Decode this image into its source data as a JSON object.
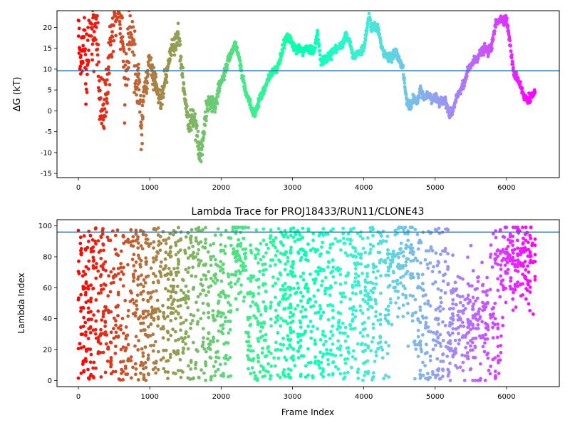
{
  "chart_data": [
    {
      "type": "scatter",
      "title": "",
      "ylabel": "ΔG (kT)",
      "xlabel": "",
      "xlim": [
        -300,
        6740
      ],
      "ylim": [
        -16,
        24
      ],
      "xticks": [
        0,
        1000,
        2000,
        3000,
        4000,
        5000,
        6000
      ],
      "yticks": [
        -15,
        -10,
        -5,
        0,
        5,
        10,
        15,
        20
      ],
      "hline": 9.6,
      "hline_color": "#1f77b4",
      "colormap": "rainbow (reversed: early frames red, late frames violet)",
      "frame_range": [
        0,
        6400
      ],
      "trace": [
        [
          0,
          20
        ],
        [
          40,
          10
        ],
        [
          80,
          18
        ],
        [
          120,
          8
        ],
        [
          160,
          24
        ],
        [
          200,
          17
        ],
        [
          250,
          22
        ],
        [
          300,
          3
        ],
        [
          350,
          0
        ],
        [
          400,
          4
        ],
        [
          450,
          18
        ],
        [
          500,
          22
        ],
        [
          550,
          24
        ],
        [
          600,
          20
        ],
        [
          650,
          7
        ],
        [
          700,
          13
        ],
        [
          750,
          20
        ],
        [
          800,
          8
        ],
        [
          850,
          5
        ],
        [
          880,
          -5
        ],
        [
          920,
          5
        ],
        [
          960,
          7
        ],
        [
          1000,
          13
        ],
        [
          1050,
          8
        ],
        [
          1100,
          5
        ],
        [
          1150,
          2
        ],
        [
          1200,
          7
        ],
        [
          1250,
          10
        ],
        [
          1300,
          15
        ],
        [
          1350,
          15
        ],
        [
          1400,
          19
        ],
        [
          1450,
          10
        ],
        [
          1500,
          2
        ],
        [
          1550,
          -3
        ],
        [
          1600,
          -2
        ],
        [
          1650,
          -3
        ],
        [
          1700,
          -11
        ],
        [
          1750,
          -6
        ],
        [
          1800,
          1
        ],
        [
          1850,
          2
        ],
        [
          1900,
          1
        ],
        [
          1950,
          4
        ],
        [
          2000,
          7
        ],
        [
          2050,
          9
        ],
        [
          2100,
          12
        ],
        [
          2150,
          14
        ],
        [
          2200,
          16
        ],
        [
          2250,
          13
        ],
        [
          2300,
          8
        ],
        [
          2350,
          4
        ],
        [
          2400,
          2
        ],
        [
          2450,
          -1
        ],
        [
          2500,
          1
        ],
        [
          2550,
          3
        ],
        [
          2600,
          5
        ],
        [
          2650,
          7
        ],
        [
          2700,
          9
        ],
        [
          2750,
          9.5
        ],
        [
          2800,
          11
        ],
        [
          2850,
          14
        ],
        [
          2900,
          17
        ],
        [
          2950,
          18
        ],
        [
          3000,
          16
        ],
        [
          3050,
          15
        ],
        [
          3100,
          15
        ],
        [
          3150,
          14
        ],
        [
          3200,
          15
        ],
        [
          3250,
          15
        ],
        [
          3300,
          14
        ],
        [
          3350,
          19
        ],
        [
          3400,
          12
        ],
        [
          3450,
          12
        ],
        [
          3500,
          13
        ],
        [
          3550,
          14
        ],
        [
          3600,
          15
        ],
        [
          3650,
          15
        ],
        [
          3700,
          16
        ],
        [
          3750,
          18
        ],
        [
          3800,
          17
        ],
        [
          3850,
          13
        ],
        [
          3900,
          14
        ],
        [
          3950,
          14
        ],
        [
          4000,
          15
        ],
        [
          4050,
          20
        ],
        [
          4080,
          23
        ],
        [
          4100,
          20
        ],
        [
          4200,
          20
        ],
        [
          4250,
          15
        ],
        [
          4300,
          13
        ],
        [
          4350,
          13
        ],
        [
          4400,
          13
        ],
        [
          4450,
          14
        ],
        [
          4500,
          12
        ],
        [
          4550,
          10
        ],
        [
          4600,
          2
        ],
        [
          4650,
          1
        ],
        [
          4700,
          3
        ],
        [
          4750,
          2
        ],
        [
          4800,
          5
        ],
        [
          4850,
          3
        ],
        [
          4900,
          4
        ],
        [
          4950,
          3
        ],
        [
          5000,
          3
        ],
        [
          5050,
          2
        ],
        [
          5100,
          3
        ],
        [
          5150,
          2
        ],
        [
          5200,
          -1
        ],
        [
          5250,
          0
        ],
        [
          5300,
          3
        ],
        [
          5350,
          5
        ],
        [
          5400,
          6
        ],
        [
          5450,
          9
        ],
        [
          5500,
          11
        ],
        [
          5550,
          12
        ],
        [
          5600,
          13
        ],
        [
          5650,
          14
        ],
        [
          5700,
          15
        ],
        [
          5750,
          14
        ],
        [
          5800,
          16
        ],
        [
          5850,
          21
        ],
        [
          5900,
          22
        ],
        [
          5950,
          22
        ],
        [
          6000,
          22
        ],
        [
          6050,
          16
        ],
        [
          6100,
          9
        ],
        [
          6150,
          8
        ],
        [
          6200,
          6
        ],
        [
          6250,
          3
        ],
        [
          6300,
          3
        ],
        [
          6400,
          4
        ]
      ]
    },
    {
      "type": "scatter",
      "title": "Lambda Trace for PROJ18433/RUN11/CLONE43",
      "xlabel": "Frame Index",
      "ylabel": "Lambda Index",
      "xlim": [
        -300,
        6740
      ],
      "ylim": [
        -4,
        104
      ],
      "xticks": [
        0,
        1000,
        2000,
        3000,
        4000,
        5000,
        6000
      ],
      "yticks": [
        0,
        20,
        40,
        60,
        80,
        100
      ],
      "hline": 96,
      "hline_color": "#1f77b4",
      "colormap": "rainbow (reversed: early frames red, late frames violet)",
      "frame_range": [
        0,
        6400
      ],
      "lambda_range": [
        0,
        99
      ],
      "n_points_approx": 2600
    }
  ]
}
